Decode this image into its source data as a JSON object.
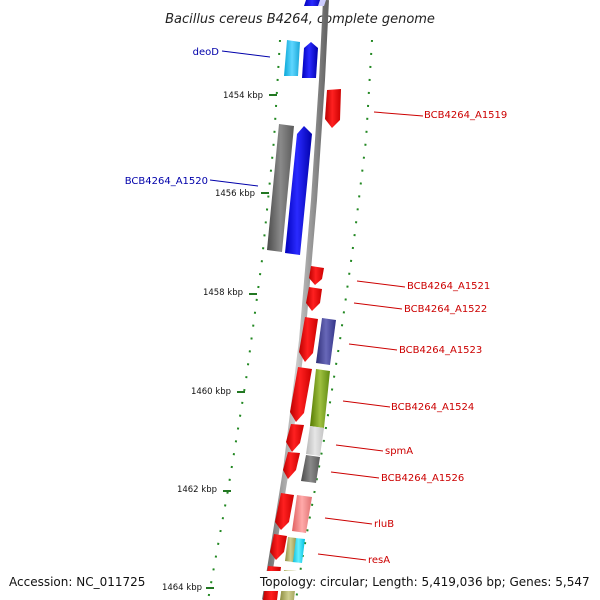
{
  "title": "Bacillus cereus B4264, complete genome",
  "footer": {
    "accession": "Accession: NC_011725",
    "topology": "Topology: circular; Length: 5,419,036 bp; Genes: 5,547"
  },
  "colors": {
    "forward_label": "#0000aa",
    "reverse_label": "#cc0000",
    "backbone": "#888888",
    "tick": "#227722",
    "dots": "#228822"
  },
  "ticks": [
    "1454 kbp",
    "1456 kbp",
    "1458 kbp",
    "1460 kbp",
    "1462 kbp",
    "1464 kbp"
  ],
  "labels": {
    "deoD": "deoD",
    "bcb1519": "BCB4264_A1519",
    "bcb1520": "BCB4264_A1520",
    "bcb1521": "BCB4264_A1521",
    "bcb1522": "BCB4264_A1522",
    "bcb1523": "BCB4264_A1523",
    "bcb1524": "BCB4264_A1524",
    "spmA": "spmA",
    "bcb1526": "BCB4264_A1526",
    "rluB": "rluB",
    "resA": "resA"
  }
}
